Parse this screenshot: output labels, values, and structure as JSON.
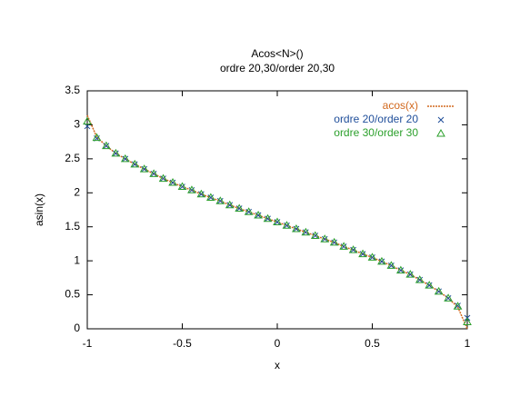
{
  "chart_data": {
    "type": "line",
    "title": "Acos<N>()",
    "subtitle": "ordre 20,30/order 20,30",
    "xlabel": "x",
    "ylabel": "asin(x)",
    "x": [
      -1,
      -0.95,
      -0.9,
      -0.85,
      -0.8,
      -0.75,
      -0.7,
      -0.65,
      -0.6,
      -0.55,
      -0.5,
      -0.45,
      -0.4,
      -0.35,
      -0.3,
      -0.25,
      -0.2,
      -0.15,
      -0.1,
      -0.05,
      0,
      0.05,
      0.1,
      0.15,
      0.2,
      0.25,
      0.3,
      0.35,
      0.4,
      0.45,
      0.5,
      0.55,
      0.6,
      0.65,
      0.7,
      0.75,
      0.8,
      0.85,
      0.9,
      0.95,
      1
    ],
    "series": [
      {
        "name": "acos(x)",
        "color": "#d2691e",
        "style": "line",
        "values": [
          3.14,
          2.82,
          2.69,
          2.58,
          2.5,
          2.42,
          2.35,
          2.28,
          2.21,
          2.15,
          2.09,
          2.04,
          1.98,
          1.93,
          1.88,
          1.82,
          1.77,
          1.72,
          1.67,
          1.62,
          1.57,
          1.52,
          1.47,
          1.42,
          1.37,
          1.32,
          1.27,
          1.21,
          1.16,
          1.1,
          1.05,
          0.99,
          0.93,
          0.86,
          0.8,
          0.72,
          0.64,
          0.55,
          0.45,
          0.32,
          0
        ]
      },
      {
        "name": "ordre 20/order 20",
        "color": "#1f4e9a",
        "style": "cross",
        "values": [
          2.98,
          2.8,
          2.69,
          2.58,
          2.5,
          2.42,
          2.35,
          2.28,
          2.21,
          2.15,
          2.09,
          2.04,
          1.98,
          1.93,
          1.88,
          1.82,
          1.77,
          1.72,
          1.67,
          1.62,
          1.57,
          1.52,
          1.47,
          1.42,
          1.37,
          1.32,
          1.27,
          1.21,
          1.16,
          1.1,
          1.05,
          0.99,
          0.93,
          0.86,
          0.8,
          0.72,
          0.64,
          0.55,
          0.45,
          0.34,
          0.16
        ]
      },
      {
        "name": "ordre 30/order 30",
        "color": "#2ca02c",
        "style": "triangle",
        "values": [
          3.05,
          2.81,
          2.69,
          2.58,
          2.5,
          2.42,
          2.35,
          2.28,
          2.21,
          2.15,
          2.09,
          2.04,
          1.98,
          1.93,
          1.88,
          1.82,
          1.77,
          1.72,
          1.67,
          1.62,
          1.57,
          1.52,
          1.47,
          1.42,
          1.37,
          1.32,
          1.27,
          1.21,
          1.16,
          1.1,
          1.05,
          0.99,
          0.93,
          0.86,
          0.8,
          0.72,
          0.64,
          0.55,
          0.45,
          0.33,
          0.1
        ]
      }
    ],
    "xlim": [
      -1,
      1
    ],
    "xticks": [
      -1,
      -0.5,
      0,
      0.5,
      1
    ],
    "ylim": [
      0,
      3.5
    ],
    "yticks": [
      0,
      0.5,
      1,
      1.5,
      2,
      2.5,
      3,
      3.5
    ],
    "legend": "top-right"
  }
}
